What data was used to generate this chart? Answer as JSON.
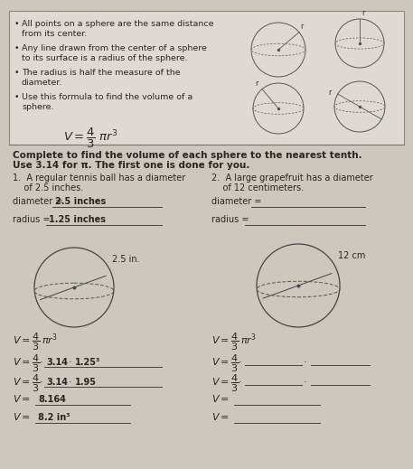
{
  "bg_color": "#cdc8be",
  "box_bg": "#dedad2",
  "text_color": "#2a2520",
  "underline_color": "#444",
  "bullet_points": [
    "All points on a sphere are the same distance\nfrom its center.",
    "Any line drawn from the center of a sphere\nto its surface is a radius of the sphere.",
    "The radius is half the measure of the\ndiameter.",
    "Use this formula to find the volume of a\nsphere."
  ],
  "section_header1": "Complete to find the volume of each sphere to the nearest tenth.",
  "section_header2": "Use 3.14 for π. The first one is done for you.",
  "prob1_title_1": "1.  A regular tennis ball has a diameter",
  "prob1_title_2": "    of 2.5 inches.",
  "prob2_title_1": "2.  A large grapefruit has a diameter",
  "prob2_title_2": "    of 12 centimeters.",
  "prob1_diam_label": "diameter = ",
  "prob1_diam_val": "2.5 inches",
  "prob1_rad_label": "radius = ",
  "prob1_rad_val": "1.25 inches",
  "prob2_diam_label": "diameter = ",
  "prob2_rad_label": "radius = ",
  "circle1_label": "2.5 in.",
  "circle2_label": "12 cm",
  "font_size_bullet": 6.8,
  "font_size_header": 7.5,
  "font_size_prob": 7.0,
  "font_size_formula": 8.5
}
